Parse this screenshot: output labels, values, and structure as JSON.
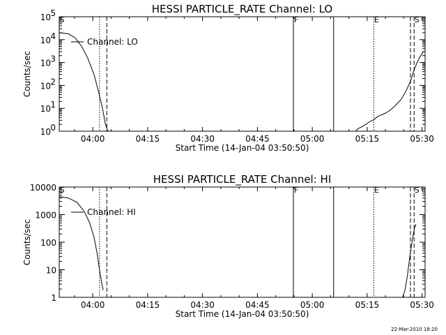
{
  "footer_timestamp": "22-Mar-2010 18:20",
  "chart_data": [
    {
      "type": "line",
      "title": "HESSI PARTICLE_RATE Channel: LO",
      "xlabel": "Start Time (14-Jan-04 03:50:50)",
      "ylabel": "Counts/sec",
      "yscale": "log",
      "ylim": [
        1,
        100000
      ],
      "xlim": [
        "03:50:50",
        "05:30:50"
      ],
      "x_ticks": [
        "04:00",
        "04:15",
        "04:30",
        "04:45",
        "05:00",
        "05:15",
        "05:30"
      ],
      "y_ticks": [
        {
          "value": 1,
          "label": "10",
          "exp": "0"
        },
        {
          "value": 10,
          "label": "10",
          "exp": "1"
        },
        {
          "value": 100,
          "label": "10",
          "exp": "2"
        },
        {
          "value": 1000,
          "label": "10",
          "exp": "3"
        },
        {
          "value": 10000,
          "label": "10",
          "exp": "4"
        },
        {
          "value": 100000,
          "label": "10",
          "exp": "5"
        }
      ],
      "legend": {
        "label": "Channel: LO",
        "placement": "top-left"
      },
      "markers": [
        {
          "label": "S",
          "time": "03:50:50",
          "style": "solid",
          "line": false
        },
        {
          "label": "",
          "time": "04:01:50",
          "style": "dotted",
          "line": true
        },
        {
          "label": "",
          "time": "04:03:50",
          "style": "dashed",
          "line": true
        },
        {
          "label": "F",
          "time": "04:54:50",
          "style": "solid",
          "line": true
        },
        {
          "label": "",
          "time": "05:05:50",
          "style": "solid",
          "line": true
        },
        {
          "label": "E",
          "time": "05:16:50",
          "style": "dotted",
          "line": true
        },
        {
          "label": "",
          "time": "05:26:50",
          "style": "dashed",
          "line": true
        },
        {
          "label": "S",
          "time": "05:27:50",
          "style": "dashed",
          "line": true
        }
      ],
      "series": [
        {
          "segments": [
            [
              [
                "03:50:50",
                20000
              ],
              [
                "03:53:20",
                18000
              ],
              [
                "03:55:10",
                12000
              ],
              [
                "03:57:00",
                5000
              ],
              [
                "03:58:40",
                1500
              ],
              [
                "04:00:20",
                300
              ],
              [
                "04:01:30",
                60
              ],
              [
                "04:02:40",
                10
              ],
              [
                "04:03:20",
                2.5
              ],
              [
                "04:03:50",
                1.3
              ],
              [
                "04:04:10",
                1
              ],
              [
                "04:05:40",
                1
              ],
              [
                "04:05:50",
                0.9
              ]
            ],
            [
              [
                "05:10:00",
                0.9
              ],
              [
                "05:10:20",
                1
              ],
              [
                "05:11:50",
                1
              ],
              [
                "05:12:30",
                1.3
              ],
              [
                "05:13:40",
                1.6
              ],
              [
                "05:14:40",
                2
              ],
              [
                "05:15:40",
                2.6
              ],
              [
                "05:16:50",
                3.2
              ],
              [
                "05:18:00",
                4.5
              ],
              [
                "05:19:50",
                6
              ],
              [
                "05:21:10",
                8
              ],
              [
                "05:22:40",
                13
              ],
              [
                "05:24:20",
                25
              ],
              [
                "05:25:40",
                60
              ],
              [
                "05:26:50",
                150
              ],
              [
                "05:27:50",
                500
              ],
              [
                "05:29:10",
                1500
              ],
              [
                "05:30:20",
                3000
              ]
            ]
          ]
        }
      ]
    },
    {
      "type": "line",
      "title": "HESSI PARTICLE_RATE Channel: HI",
      "xlabel": "Start Time (14-Jan-04 03:50:50)",
      "ylabel": "Counts/sec",
      "yscale": "log",
      "ylim": [
        1,
        10000
      ],
      "xlim": [
        "03:50:50",
        "05:30:50"
      ],
      "x_ticks": [
        "04:00",
        "04:15",
        "04:30",
        "04:45",
        "05:00",
        "05:15",
        "05:30"
      ],
      "y_ticks": [
        {
          "value": 1,
          "label": "1"
        },
        {
          "value": 10,
          "label": "10"
        },
        {
          "value": 100,
          "label": "100"
        },
        {
          "value": 1000,
          "label": "1000"
        },
        {
          "value": 10000,
          "label": "10000"
        }
      ],
      "legend": {
        "label": "Channel: HI",
        "placement": "top-left"
      },
      "markers": [
        {
          "label": "S",
          "time": "03:50:50",
          "style": "solid",
          "line": false
        },
        {
          "label": "",
          "time": "04:01:50",
          "style": "dotted",
          "line": true
        },
        {
          "label": "",
          "time": "04:03:50",
          "style": "dashed",
          "line": true
        },
        {
          "label": "F",
          "time": "04:54:50",
          "style": "solid",
          "line": true
        },
        {
          "label": "",
          "time": "05:05:50",
          "style": "solid",
          "line": true
        },
        {
          "label": "E",
          "time": "05:16:50",
          "style": "dotted",
          "line": true
        },
        {
          "label": "",
          "time": "05:26:50",
          "style": "dashed",
          "line": true
        },
        {
          "label": "S",
          "time": "05:27:50",
          "style": "dashed",
          "line": true
        }
      ],
      "series": [
        {
          "segments": [
            [
              [
                "03:50:50",
                4500
              ],
              [
                "03:53:20",
                4000
              ],
              [
                "03:55:40",
                2800
              ],
              [
                "03:57:40",
                1300
              ],
              [
                "03:59:10",
                500
              ],
              [
                "04:00:20",
                150
              ],
              [
                "04:01:10",
                40
              ],
              [
                "04:01:50",
                10
              ],
              [
                "04:02:30",
                3
              ],
              [
                "04:02:50",
                1.8
              ]
            ],
            [
              [
                "05:24:40",
                0.9
              ],
              [
                "05:25:20",
                1.8
              ],
              [
                "05:26:00",
                6
              ],
              [
                "05:26:40",
                30
              ],
              [
                "05:27:20",
                120
              ],
              [
                "05:28:00",
                350
              ],
              [
                "05:28:20",
                450
              ]
            ]
          ]
        }
      ]
    }
  ]
}
